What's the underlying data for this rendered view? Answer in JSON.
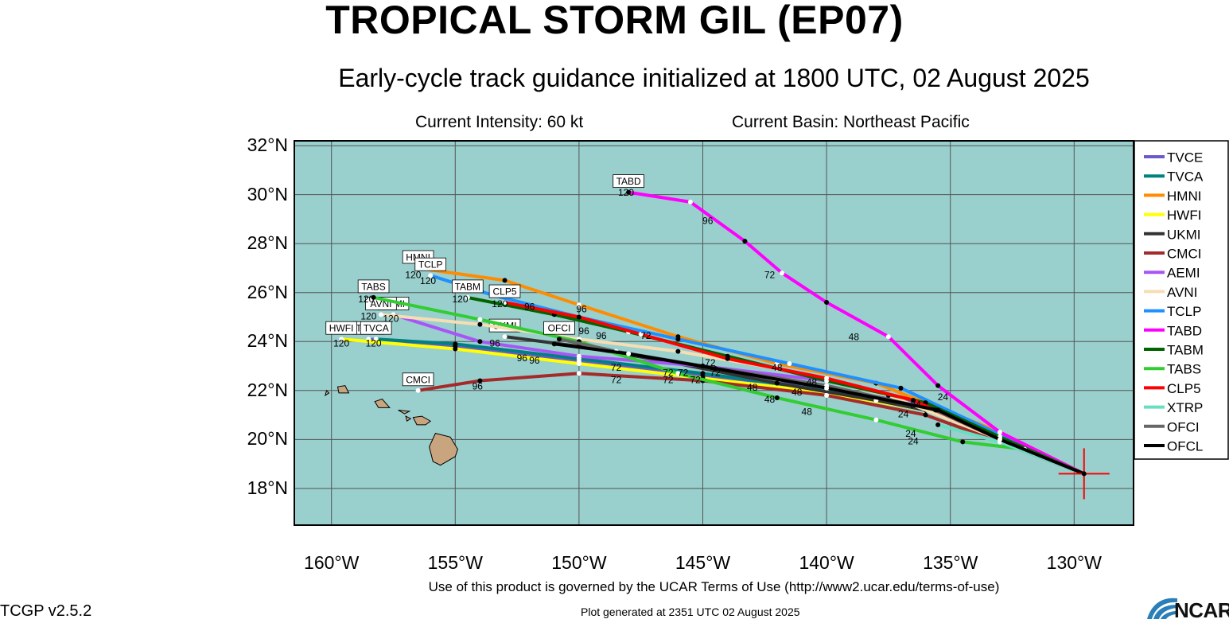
{
  "header": {
    "title": "TROPICAL STORM GIL (EP07)",
    "subtitle": "Early-cycle track guidance initialized at 1800 UTC, 02 August 2025",
    "intensity": "Current Intensity: 60 kt",
    "basin": "Current Basin: Northeast Pacific"
  },
  "axes": {
    "lat_labels": [
      "32°N",
      "30°N",
      "28°N",
      "26°N",
      "24°N",
      "22°N",
      "20°N",
      "18°N"
    ],
    "lon_labels": [
      "160°W",
      "155°W",
      "150°W",
      "145°W",
      "140°W",
      "135°W",
      "130°W"
    ]
  },
  "colors": {
    "ocean": "#99cfcd",
    "land": "#c8a57f",
    "grid": "#555555"
  },
  "storm_position": {
    "lon": -129.6,
    "lat": 18.6
  },
  "chart_data": {
    "type": "map-tracks",
    "lon_range": [
      -161.5,
      -127.6
    ],
    "lat_range": [
      16.5,
      32.2
    ],
    "models": [
      {
        "name": "TVCE",
        "color": "#6a5acd",
        "end_label": "TVCE",
        "track": [
          [
            -129.6,
            18.6
          ],
          [
            -133,
            20.1
          ],
          [
            -136,
            21.4
          ],
          [
            -140,
            22.1
          ],
          [
            -145,
            22.6
          ],
          [
            -150,
            23.2
          ],
          [
            -155,
            23.8
          ],
          [
            -158.5,
            24.1
          ]
        ]
      },
      {
        "name": "TVCA",
        "color": "#008080",
        "end_label": "TVCA",
        "track": [
          [
            -129.6,
            18.6
          ],
          [
            -133,
            20.0
          ],
          [
            -136,
            21.2
          ],
          [
            -140,
            22.0
          ],
          [
            -145,
            22.7
          ],
          [
            -150,
            23.3
          ],
          [
            -155,
            23.9
          ],
          [
            -158.2,
            24.1
          ]
        ]
      },
      {
        "name": "HMNI",
        "color": "#ff8c00",
        "end_label": "HMNI",
        "track": [
          [
            -129.6,
            18.6
          ],
          [
            -133,
            20.3
          ],
          [
            -138,
            22.3
          ],
          [
            -142,
            23.1
          ],
          [
            -146,
            24.2
          ],
          [
            -150,
            25.5
          ],
          [
            -153,
            26.5
          ],
          [
            -156.5,
            27.0
          ]
        ]
      },
      {
        "name": "HWFI",
        "color": "#ffff00",
        "end_label": "HWFI",
        "track": [
          [
            -129.6,
            18.6
          ],
          [
            -133,
            20.0
          ],
          [
            -136,
            21.2
          ],
          [
            -140,
            21.9
          ],
          [
            -145,
            22.5
          ],
          [
            -150,
            23.1
          ],
          [
            -155,
            23.7
          ],
          [
            -159.6,
            24.1
          ]
        ]
      },
      {
        "name": "UKMI",
        "color": "#333333",
        "end_label": "UKMI",
        "track": [
          [
            -129.6,
            18.6
          ],
          [
            -133,
            20.0
          ],
          [
            -135.5,
            21.1
          ],
          [
            -138,
            21.6
          ],
          [
            -142,
            22.3
          ],
          [
            -146.5,
            23.2
          ],
          [
            -150,
            23.8
          ],
          [
            -153,
            24.2
          ]
        ]
      },
      {
        "name": "CMCI",
        "color": "#a52a2a",
        "end_label": "CMCI",
        "track": [
          [
            -129.6,
            18.6
          ],
          [
            -133,
            19.9
          ],
          [
            -136,
            21.0
          ],
          [
            -140,
            21.8
          ],
          [
            -145,
            22.4
          ],
          [
            -150,
            22.7
          ],
          [
            -154,
            22.4
          ],
          [
            -156.5,
            22.0
          ]
        ]
      },
      {
        "name": "AEMI",
        "color": "#a855f7",
        "end_label": "AEMI",
        "track": [
          [
            -129.6,
            18.6
          ],
          [
            -133,
            20.0
          ],
          [
            -136,
            21.5
          ],
          [
            -140,
            22.4
          ],
          [
            -145,
            23.0
          ],
          [
            -150,
            23.4
          ],
          [
            -154,
            24.0
          ],
          [
            -157.5,
            25.1
          ]
        ]
      },
      {
        "name": "AVNI",
        "color": "#f5deb3",
        "end_label": "AVNI",
        "track": [
          [
            -129.6,
            18.6
          ],
          [
            -133,
            20.0
          ],
          [
            -137.5,
            21.8
          ],
          [
            -142,
            22.9
          ],
          [
            -146,
            23.6
          ],
          [
            -150,
            24.1
          ],
          [
            -154,
            24.7
          ],
          [
            -158,
            25.1
          ]
        ]
      },
      {
        "name": "TCLP",
        "color": "#1e90ff",
        "end_label": "TCLP",
        "track": [
          [
            -129.6,
            18.6
          ],
          [
            -133,
            20.2
          ],
          [
            -137,
            22.1
          ],
          [
            -141.5,
            23.1
          ],
          [
            -146,
            24.1
          ],
          [
            -150,
            25.0
          ],
          [
            -153.5,
            25.9
          ],
          [
            -156,
            26.7
          ]
        ]
      },
      {
        "name": "TABD",
        "color": "#ff00ff",
        "end_label": "TABD",
        "track": [
          [
            -129.6,
            18.6
          ],
          [
            -133,
            20.3
          ],
          [
            -135.5,
            22.2
          ],
          [
            -137.5,
            24.2
          ],
          [
            -140,
            25.6
          ],
          [
            -141.8,
            26.8
          ],
          [
            -143.3,
            28.1
          ],
          [
            -145.5,
            29.7
          ],
          [
            -148,
            30.1
          ]
        ]
      },
      {
        "name": "TABM",
        "color": "#006400",
        "end_label": "TABM",
        "track": [
          [
            -129.6,
            18.6
          ],
          [
            -133,
            20.1
          ],
          [
            -136,
            21.5
          ],
          [
            -140,
            22.4
          ],
          [
            -144,
            23.4
          ],
          [
            -148,
            24.4
          ],
          [
            -151,
            25.1
          ],
          [
            -154.5,
            25.8
          ]
        ]
      },
      {
        "name": "TABS",
        "color": "#32cd32",
        "end_label": "TABS",
        "track": [
          [
            -129.6,
            18.6
          ],
          [
            -132,
            19.6
          ],
          [
            -134.5,
            19.9
          ],
          [
            -138,
            20.8
          ],
          [
            -142,
            21.7
          ],
          [
            -146,
            22.7
          ],
          [
            -150,
            24.0
          ],
          [
            -154,
            24.9
          ],
          [
            -158.3,
            25.8
          ]
        ]
      },
      {
        "name": "CLP5",
        "color": "#ff0000",
        "end_label": "CLP5",
        "track": [
          [
            -129.6,
            18.6
          ],
          [
            -133,
            20.0
          ],
          [
            -136.5,
            21.6
          ],
          [
            -140,
            22.5
          ],
          [
            -144,
            23.3
          ],
          [
            -147.5,
            24.3
          ],
          [
            -150,
            25.0
          ],
          [
            -153,
            25.6
          ]
        ]
      },
      {
        "name": "XTRP",
        "color": "#66e0c0",
        "end_label": "",
        "track": [
          [
            -129.6,
            18.6
          ],
          [
            -133,
            19.9
          ],
          [
            -135.5,
            20.6
          ]
        ]
      },
      {
        "name": "OFCI",
        "color": "#666666",
        "end_label": "OFCI",
        "track": [
          [
            -129.6,
            18.6
          ],
          [
            -133,
            20.0
          ],
          [
            -135.6,
            21.2
          ],
          [
            -140,
            22.2
          ],
          [
            -145,
            23.0
          ],
          [
            -148.5,
            23.6
          ],
          [
            -150.8,
            24.1
          ]
        ]
      },
      {
        "name": "OFCL",
        "color": "#000000",
        "end_label": "",
        "track": [
          [
            -129.6,
            18.6
          ],
          [
            -133,
            20.0
          ],
          [
            -135.5,
            21.2
          ],
          [
            -140,
            22.1
          ],
          [
            -144.5,
            22.9
          ],
          [
            -148,
            23.5
          ],
          [
            -151,
            23.9
          ]
        ]
      }
    ],
    "hour_labels": [
      {
        "text": "120",
        "lon": -148.1,
        "lat": 29.95
      },
      {
        "text": "96",
        "lon": -144.8,
        "lat": 28.8
      },
      {
        "text": "72",
        "lon": -142.3,
        "lat": 26.6
      },
      {
        "text": "48",
        "lon": -138.9,
        "lat": 24.05
      },
      {
        "text": "120",
        "lon": -156.7,
        "lat": 26.6
      },
      {
        "text": "120",
        "lon": -156.1,
        "lat": 26.35
      },
      {
        "text": "120",
        "lon": -158.6,
        "lat": 25.6
      },
      {
        "text": "120",
        "lon": -158.5,
        "lat": 24.9
      },
      {
        "text": "120",
        "lon": -157.6,
        "lat": 24.8
      },
      {
        "text": "120",
        "lon": -154.8,
        "lat": 25.6
      },
      {
        "text": "120",
        "lon": -153.2,
        "lat": 25.4
      },
      {
        "text": "120",
        "lon": -159.6,
        "lat": 23.8
      },
      {
        "text": "120",
        "lon": -158.3,
        "lat": 23.8
      },
      {
        "text": "96",
        "lon": -152.0,
        "lat": 25.3
      },
      {
        "text": "96",
        "lon": -149.9,
        "lat": 25.2
      },
      {
        "text": "96",
        "lon": -149.8,
        "lat": 24.3
      },
      {
        "text": "96",
        "lon": -149.1,
        "lat": 24.1
      },
      {
        "text": "96",
        "lon": -153.4,
        "lat": 23.8
      },
      {
        "text": "96",
        "lon": -152.3,
        "lat": 23.2
      },
      {
        "text": "96",
        "lon": -151.8,
        "lat": 23.1
      },
      {
        "text": "96",
        "lon": -154.1,
        "lat": 22.05
      },
      {
        "text": "72",
        "lon": -147.3,
        "lat": 24.1
      },
      {
        "text": "72",
        "lon": -148.5,
        "lat": 22.8
      },
      {
        "text": "72",
        "lon": -148.5,
        "lat": 22.3
      },
      {
        "text": "72",
        "lon": -146.4,
        "lat": 22.6
      },
      {
        "text": "72",
        "lon": -146.4,
        "lat": 22.3
      },
      {
        "text": "72",
        "lon": -145.8,
        "lat": 22.6
      },
      {
        "text": "72",
        "lon": -145.3,
        "lat": 22.3
      },
      {
        "text": "72",
        "lon": -144.7,
        "lat": 23.0
      },
      {
        "text": "72",
        "lon": -144.5,
        "lat": 22.6
      },
      {
        "text": "48",
        "lon": -142.0,
        "lat": 22.8
      },
      {
        "text": "48",
        "lon": -143.0,
        "lat": 22.0
      },
      {
        "text": "48",
        "lon": -142.3,
        "lat": 21.5
      },
      {
        "text": "48",
        "lon": -141.2,
        "lat": 21.8
      },
      {
        "text": "48",
        "lon": -140.6,
        "lat": 22.2
      },
      {
        "text": "48",
        "lon": -140.8,
        "lat": 21.0
      },
      {
        "text": "24",
        "lon": -136.4,
        "lat": 21.3
      },
      {
        "text": "24",
        "lon": -136.9,
        "lat": 20.9
      },
      {
        "text": "24",
        "lon": -136.6,
        "lat": 20.1
      },
      {
        "text": "24",
        "lon": -136.5,
        "lat": 19.8
      },
      {
        "text": "24",
        "lon": -135.3,
        "lat": 21.6
      }
    ]
  }
}
